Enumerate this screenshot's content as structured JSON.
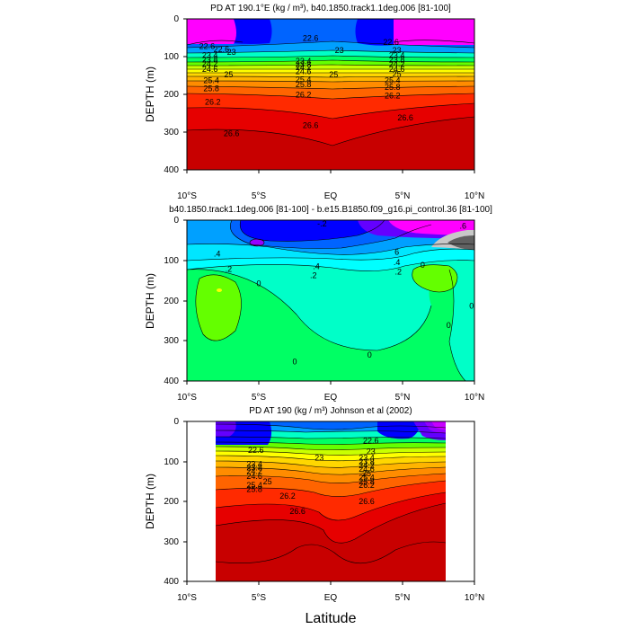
{
  "figure": {
    "xlabel": "Latitude",
    "ylabel": "DEPTH (m)"
  },
  "colors": {
    "density_scale": [
      "#c80000",
      "#e60000",
      "#ff2a00",
      "#ff6400",
      "#ff8c00",
      "#ffb400",
      "#ffd700",
      "#ffff00",
      "#c8ff00",
      "#64ff00",
      "#00ff64",
      "#00ffc8",
      "#00e6ff",
      "#00a0ff",
      "#0064ff",
      "#0028ff",
      "#0000ff",
      "#6400ff",
      "#9600ff",
      "#c800ff",
      "#ff00ff"
    ],
    "anomaly_scale": {
      "dark_gray": "#606060",
      "light_gray": "#c8c8c8",
      "magenta": "#ff00ff",
      "purple": "#9600ff",
      "blue": "#0028ff",
      "mid_blue": "#0064ff",
      "sky": "#00a0ff",
      "cyan": "#00ffff",
      "aqua": "#00ffc8",
      "lime": "#00ff64",
      "green": "#64ff00",
      "yellow": "#ffff00"
    },
    "missing": "#ffffff"
  },
  "chart_data": [
    {
      "type": "contour",
      "title": "PD AT 190.1°E (kg / m³), b40.1850.track1.1deg.006 [81-100]",
      "xlabel": "Latitude",
      "ylabel": "DEPTH (m)",
      "xlim": [
        -10,
        10
      ],
      "ylim": [
        0,
        400
      ],
      "x_ticks": [
        "10°S",
        "5°S",
        "EQ",
        "5°N",
        "10°N"
      ],
      "y_ticks": [
        "0",
        "100",
        "200",
        "300",
        "400"
      ],
      "contour_levels": [
        22.6,
        23,
        23.4,
        23.8,
        24.2,
        24.6,
        25,
        25.4,
        25.8,
        26.2,
        26.6
      ],
      "contour_labels": [
        {
          "text": "22.6",
          "x": -8.6,
          "y": 73
        },
        {
          "text": "22.6",
          "x": -7.6,
          "y": 81
        },
        {
          "text": "23",
          "x": -6.9,
          "y": 88
        },
        {
          "text": "23.4",
          "x": -8.4,
          "y": 97
        },
        {
          "text": "23.8",
          "x": -8.4,
          "y": 108
        },
        {
          "text": "24.2",
          "x": -8.4,
          "y": 119
        },
        {
          "text": "24.6",
          "x": -8.4,
          "y": 133
        },
        {
          "text": "25",
          "x": -7.1,
          "y": 148
        },
        {
          "text": "25.4",
          "x": -8.3,
          "y": 163
        },
        {
          "text": "25.8",
          "x": -8.3,
          "y": 184
        },
        {
          "text": "26.2",
          "x": -8.2,
          "y": 220
        },
        {
          "text": "26.6",
          "x": -6.9,
          "y": 303
        },
        {
          "text": "22.6",
          "x": -1.4,
          "y": 51
        },
        {
          "text": "23",
          "x": 0.6,
          "y": 83
        },
        {
          "text": "23.4",
          "x": -1.9,
          "y": 112
        },
        {
          "text": "23.8",
          "x": -1.9,
          "y": 121
        },
        {
          "text": "24.2",
          "x": -1.9,
          "y": 129
        },
        {
          "text": "24.6",
          "x": -1.9,
          "y": 139
        },
        {
          "text": "25",
          "x": 0.2,
          "y": 148
        },
        {
          "text": "25.4",
          "x": -1.9,
          "y": 161
        },
        {
          "text": "25.8",
          "x": -1.9,
          "y": 174
        },
        {
          "text": "26.2",
          "x": -1.9,
          "y": 201
        },
        {
          "text": "26.6",
          "x": -1.4,
          "y": 282
        },
        {
          "text": "22.6",
          "x": 4.2,
          "y": 62
        },
        {
          "text": "23",
          "x": 4.6,
          "y": 83
        },
        {
          "text": "23.4",
          "x": 4.6,
          "y": 96
        },
        {
          "text": "23.8",
          "x": 4.6,
          "y": 108
        },
        {
          "text": "24.2",
          "x": 4.6,
          "y": 120
        },
        {
          "text": "24.6",
          "x": 4.6,
          "y": 133
        },
        {
          "text": "25",
          "x": 4.6,
          "y": 147
        },
        {
          "text": "25.4",
          "x": 4.3,
          "y": 163
        },
        {
          "text": "25.8",
          "x": 4.3,
          "y": 181
        },
        {
          "text": "26.2",
          "x": 4.3,
          "y": 203
        },
        {
          "text": "26.6",
          "x": 5.2,
          "y": 262
        }
      ]
    },
    {
      "type": "contour",
      "title": "b40.1850.track1.1deg.006 [81-100] - b.e15.B1850.f09_g16.pi_control.36 [81-100]",
      "xlabel": "Latitude",
      "ylabel": "DEPTH (m)",
      "xlim": [
        -10,
        10
      ],
      "ylim": [
        0,
        400
      ],
      "x_ticks": [
        "10°S",
        "5°S",
        "EQ",
        "5°N",
        "10°N"
      ],
      "y_ticks": [
        "0",
        "100",
        "200",
        "300",
        "400"
      ],
      "contour_labels": [
        {
          "text": ".4",
          "x": -7.9,
          "y": 84
        },
        {
          "text": ".2",
          "x": -7.1,
          "y": 122
        },
        {
          "text": "0",
          "x": -5.0,
          "y": 158
        },
        {
          "text": ".4",
          "x": -1.0,
          "y": 115
        },
        {
          "text": ".2",
          "x": -1.2,
          "y": 137
        },
        {
          "text": "-.2",
          "x": -0.6,
          "y": 9
        },
        {
          "text": "0",
          "x": -2.5,
          "y": 352
        },
        {
          "text": "0",
          "x": 2.7,
          "y": 335
        },
        {
          "text": ".2",
          "x": 4.7,
          "y": 128
        },
        {
          "text": ".4",
          "x": 4.6,
          "y": 105
        },
        {
          "text": "6",
          "x": 4.6,
          "y": 79
        },
        {
          "text": "0",
          "x": 6.4,
          "y": 112
        },
        {
          "text": "0",
          "x": 8.2,
          "y": 262
        },
        {
          "text": "0",
          "x": 9.8,
          "y": 213
        },
        {
          "text": ".6",
          "x": 9.2,
          "y": 15
        }
      ]
    },
    {
      "type": "contour",
      "title": "PD AT 190 (kg / m³) Johnson et al (2002)",
      "xlabel": "Latitude",
      "ylabel": "DEPTH (m)",
      "xlim": [
        -10,
        10
      ],
      "ylim": [
        0,
        400
      ],
      "data_x_range": [
        -8,
        8
      ],
      "x_ticks": [
        "10°S",
        "5°S",
        "EQ",
        "5°N",
        "10°N"
      ],
      "y_ticks": [
        "0",
        "100",
        "200",
        "300",
        "400"
      ],
      "contour_labels": [
        {
          "text": "22.6",
          "x": -5.2,
          "y": 72
        },
        {
          "text": "23",
          "x": -0.8,
          "y": 91
        },
        {
          "text": "23.4",
          "x": -5.3,
          "y": 107
        },
        {
          "text": "23.8",
          "x": -5.3,
          "y": 116
        },
        {
          "text": "24.2",
          "x": -5.3,
          "y": 125
        },
        {
          "text": "24.6",
          "x": -5.3,
          "y": 137
        },
        {
          "text": "25",
          "x": -4.4,
          "y": 151
        },
        {
          "text": "25.4",
          "x": -5.3,
          "y": 160
        },
        {
          "text": "25.8",
          "x": -5.3,
          "y": 170
        },
        {
          "text": "26.2",
          "x": -3.0,
          "y": 186
        },
        {
          "text": "26.6",
          "x": -2.3,
          "y": 225
        },
        {
          "text": "22.6",
          "x": 2.8,
          "y": 48
        },
        {
          "text": "23",
          "x": 2.8,
          "y": 75
        },
        {
          "text": "23.4",
          "x": 2.5,
          "y": 91
        },
        {
          "text": "23.8",
          "x": 2.5,
          "y": 101
        },
        {
          "text": "24.2",
          "x": 2.5,
          "y": 110
        },
        {
          "text": "24.6",
          "x": 2.5,
          "y": 119
        },
        {
          "text": "25",
          "x": 2.5,
          "y": 130
        },
        {
          "text": "25.4",
          "x": 2.5,
          "y": 140
        },
        {
          "text": "25.8",
          "x": 2.5,
          "y": 150
        },
        {
          "text": "26.2",
          "x": 2.5,
          "y": 160
        },
        {
          "text": "26.6",
          "x": 2.5,
          "y": 200
        }
      ]
    }
  ]
}
